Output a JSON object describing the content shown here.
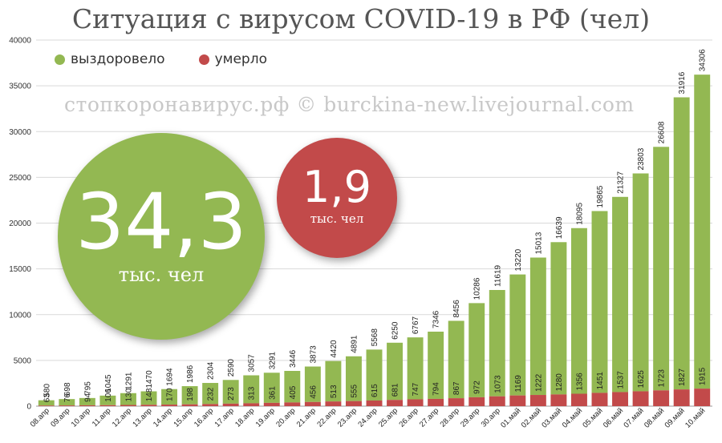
{
  "title": "Ситуация с вирусом COVID-19 в РФ (чел)",
  "watermark": "стопкоронавирус.рф © burckina-new.livejournal.com",
  "colors": {
    "recovered": "#93b852",
    "deaths": "#c24a4a",
    "grid": "#d9d9d9"
  },
  "highlights": {
    "recovered": {
      "value": "34,3",
      "unit": "тыс. чел"
    },
    "deaths": {
      "value": "1,9",
      "unit": "тыс. чел"
    }
  },
  "chart_data": {
    "type": "bar",
    "stacked": true,
    "categories": [
      "08.апр",
      "09.апр",
      "10.апр",
      "11.апр",
      "12.апр",
      "13.апр",
      "14.апр",
      "15.апр",
      "16.апр",
      "17.апр",
      "18.апр",
      "19.апр",
      "20.апр",
      "21.апр",
      "22.апр",
      "23.апр",
      "24.апр",
      "25.апр",
      "26.апр",
      "27.апр",
      "28.апр",
      "29.апр",
      "30.апр",
      "01.май",
      "02.май",
      "03.май",
      "04.май",
      "05.май",
      "06.май",
      "07.май",
      "08.май",
      "09.май",
      "10.май"
    ],
    "series": [
      {
        "name": "умерло",
        "values": [
          63,
          76,
          94,
          106,
          130,
          148,
          170,
          198,
          232,
          273,
          313,
          361,
          405,
          456,
          513,
          555,
          615,
          681,
          747,
          794,
          867,
          972,
          1073,
          1169,
          1222,
          1280,
          1356,
          1451,
          1537,
          1625,
          1723,
          1827,
          1915
        ]
      },
      {
        "name": "выздоровело",
        "values": [
          580,
          698,
          795,
          1045,
          1291,
          1470,
          1694,
          1986,
          2304,
          2590,
          3057,
          3291,
          3446,
          3873,
          4420,
          4891,
          5568,
          6250,
          6767,
          7346,
          8456,
          10286,
          11619,
          13220,
          15013,
          16639,
          18095,
          19865,
          21327,
          23803,
          26608,
          31916,
          34306
        ]
      }
    ],
    "ylim": [
      0,
      40000
    ],
    "yticks": [
      "0",
      "5000",
      "10000",
      "15000",
      "20000",
      "25000",
      "30000",
      "35000",
      "40000"
    ],
    "grid": true,
    "legend": "top-left"
  }
}
